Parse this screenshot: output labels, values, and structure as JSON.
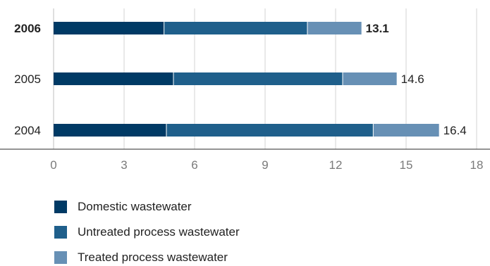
{
  "chart_data": {
    "type": "stacked-bar-horizontal",
    "categories": [
      "2006",
      "2005",
      "2004"
    ],
    "highlight_category": "2006",
    "series": [
      {
        "name": "Domestic wastewater",
        "color": "#003a65",
        "values": [
          4.7,
          5.1,
          4.8
        ]
      },
      {
        "name": "Untreated process wastewater",
        "color": "#1f5f8b",
        "values": [
          6.1,
          7.2,
          8.8
        ]
      },
      {
        "name": "Treated process wastewater",
        "color": "#6790b5",
        "values": [
          2.3,
          2.3,
          2.8
        ]
      }
    ],
    "totals": [
      "13.1",
      "14.6",
      "16.4"
    ],
    "x_ticks": [
      0,
      3,
      6,
      9,
      12,
      15,
      18
    ],
    "xlim": [
      0,
      18
    ],
    "grid": "vertical",
    "legend_position": "bottom-left"
  }
}
